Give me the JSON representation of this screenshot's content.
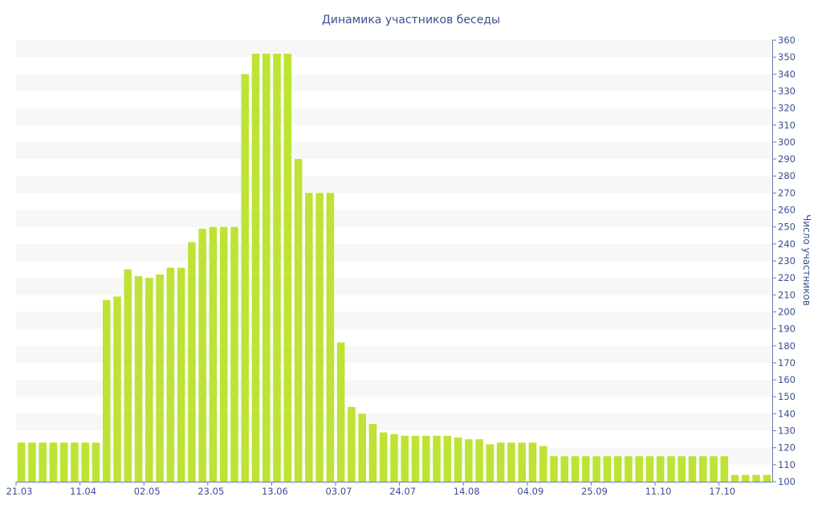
{
  "chart_data": {
    "type": "bar",
    "title": "Динамика участников беседы",
    "xlabel": "",
    "ylabel": "Число участников",
    "ylim": [
      100,
      360
    ],
    "ytick_step": 10,
    "grid": "alternating-bands",
    "bar_color": "#bde334",
    "text_color": "#3d4f8f",
    "x_tick_labels": [
      "21.03",
      "11.04",
      "02.05",
      "23.05",
      "13.06",
      "03.07",
      "24.07",
      "14.08",
      "04.09",
      "25.09",
      "11.10",
      "17.10"
    ],
    "x_tick_positions": [
      0,
      6,
      12,
      18,
      24,
      30,
      36,
      42,
      48,
      54,
      60,
      66
    ],
    "series": [
      {
        "values": [
          123,
          123,
          123,
          123,
          123,
          123,
          123,
          123,
          207,
          209,
          225,
          221,
          220,
          222,
          226,
          226,
          241,
          249,
          250,
          250,
          250,
          340,
          352,
          352,
          352,
          352,
          290,
          270,
          270,
          270,
          182,
          144,
          140,
          134,
          129,
          128,
          127,
          127,
          127,
          127,
          127,
          126,
          125,
          125,
          122,
          123,
          123,
          123,
          123,
          121,
          115,
          115,
          115,
          115,
          115,
          115,
          115,
          115,
          115,
          115,
          115,
          115,
          115,
          115,
          115,
          115,
          115,
          104,
          104,
          104,
          104
        ]
      }
    ]
  }
}
